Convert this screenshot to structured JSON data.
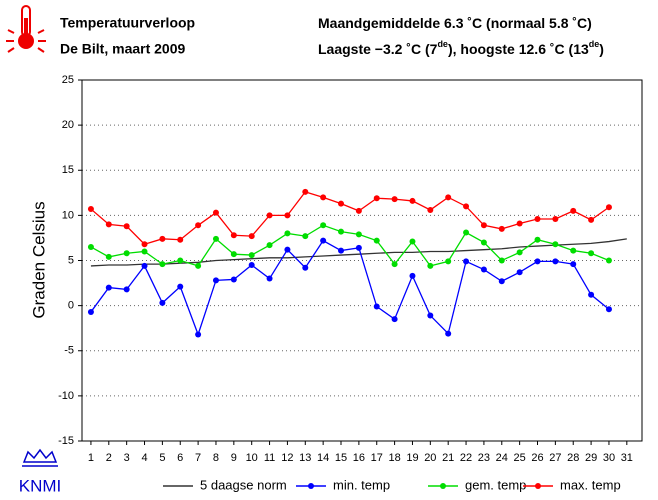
{
  "chart_data": {
    "type": "line",
    "title": "Temperatuurverloop",
    "subtitle": "De Bilt, maart 2009",
    "annotations": [
      [
        "Maandgemiddelde 6.3 ˚C (normaal 5.8 ˚C)"
      ],
      [
        "Laagste −3.2 ˚C (7",
        "de",
        "), hoogste 12.6 ˚C (13",
        "de",
        ")"
      ]
    ],
    "logo_text": "KNMI",
    "y_label": "Graden Celsius",
    "x": [
      1,
      2,
      3,
      4,
      5,
      6,
      7,
      8,
      9,
      10,
      11,
      12,
      13,
      14,
      15,
      16,
      17,
      18,
      19,
      20,
      21,
      22,
      23,
      24,
      25,
      26,
      27,
      28,
      29,
      30,
      31
    ],
    "xlim": [
      0.5,
      31.85
    ],
    "xticks": [
      1,
      2,
      3,
      4,
      5,
      6,
      7,
      8,
      9,
      10,
      11,
      12,
      13,
      14,
      15,
      16,
      17,
      18,
      19,
      20,
      21,
      22,
      23,
      24,
      25,
      26,
      27,
      28,
      29,
      30,
      31
    ],
    "ylim": [
      -15,
      25
    ],
    "yticks": [
      -15,
      -10,
      -5,
      0,
      5,
      10,
      15,
      20,
      25
    ],
    "grid": true,
    "series": [
      {
        "name": "5 daagse norm",
        "color": "#333333",
        "markers": false,
        "values": [
          4.4,
          4.5,
          4.5,
          4.6,
          4.6,
          4.7,
          4.8,
          5.0,
          5.1,
          5.2,
          5.3,
          5.3,
          5.4,
          5.5,
          5.6,
          5.7,
          5.8,
          5.9,
          5.9,
          6.0,
          6.0,
          6.1,
          6.2,
          6.3,
          6.5,
          6.6,
          6.7,
          6.8,
          6.9,
          7.1,
          7.4
        ]
      },
      {
        "name": "min. temp",
        "color": "#0000ff",
        "markers": true,
        "values": [
          -0.7,
          2.0,
          1.8,
          4.4,
          0.3,
          2.1,
          -3.2,
          2.8,
          2.9,
          4.5,
          3.0,
          6.2,
          4.2,
          7.2,
          6.1,
          6.4,
          -0.1,
          -1.5,
          3.3,
          -1.1,
          -3.1,
          4.9,
          4.0,
          2.7,
          3.7,
          4.9,
          4.9,
          4.6,
          1.2,
          -0.4,
          null
        ]
      },
      {
        "name": "gem. temp",
        "color": "#00dd00",
        "markers": true,
        "values": [
          6.5,
          5.4,
          5.8,
          6.0,
          4.6,
          5.0,
          4.4,
          7.4,
          5.7,
          5.6,
          6.7,
          8.0,
          7.7,
          8.9,
          8.2,
          7.9,
          7.2,
          4.6,
          7.1,
          4.4,
          4.9,
          8.1,
          7.0,
          5.0,
          5.9,
          7.3,
          6.8,
          6.1,
          5.8,
          5.0,
          null
        ]
      },
      {
        "name": "max. temp",
        "color": "#ff0000",
        "markers": true,
        "values": [
          10.7,
          9.0,
          8.8,
          6.8,
          7.4,
          7.3,
          8.9,
          10.3,
          7.8,
          7.7,
          10.0,
          10.0,
          12.6,
          12.0,
          11.3,
          10.5,
          11.9,
          11.8,
          11.6,
          10.6,
          12.0,
          11.0,
          8.9,
          8.5,
          9.1,
          9.6,
          9.6,
          10.5,
          9.5,
          10.9,
          null
        ]
      }
    ]
  }
}
